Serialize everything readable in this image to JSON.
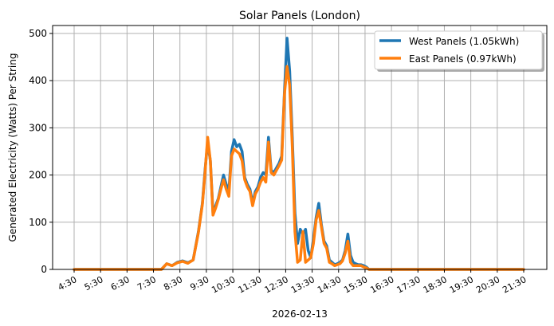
{
  "chart_data": {
    "type": "line",
    "title": "Solar Panels (London)",
    "xlabel": "2026-02-13",
    "ylabel": "Generated Electricity (Watts) Per String",
    "ylim": [
      0,
      515
    ],
    "yticks": [
      0,
      100,
      200,
      300,
      400,
      500
    ],
    "xticks": [
      "4:30",
      "5:30",
      "6:30",
      "7:30",
      "8:30",
      "9:30",
      "10:30",
      "11:30",
      "12:30",
      "13:30",
      "14:30",
      "15:30",
      "16:30",
      "17:30",
      "18:30",
      "19:30",
      "20:30",
      "21:30"
    ],
    "grid": true,
    "legend_position": "upper right",
    "x_hours": [
      4.5,
      5,
      6,
      7,
      7.8,
      8.0,
      8.2,
      8.4,
      8.6,
      8.8,
      9.0,
      9.2,
      9.35,
      9.45,
      9.55,
      9.65,
      9.75,
      9.85,
      9.95,
      10.05,
      10.15,
      10.25,
      10.35,
      10.45,
      10.55,
      10.65,
      10.75,
      10.85,
      10.95,
      11.05,
      11.15,
      11.25,
      11.35,
      11.45,
      11.55,
      11.65,
      11.75,
      11.85,
      11.95,
      12.05,
      12.15,
      12.25,
      12.35,
      12.45,
      12.55,
      12.65,
      12.75,
      12.85,
      12.95,
      13.05,
      13.15,
      13.25,
      13.35,
      13.45,
      13.55,
      13.65,
      13.75,
      13.85,
      13.95,
      14.05,
      14.15,
      14.25,
      14.35,
      14.45,
      14.55,
      14.65,
      14.75,
      14.85,
      14.95,
      15.05,
      15.15,
      15.25,
      15.35,
      15.45,
      15.55,
      15.65,
      15.75,
      15.85,
      15.95,
      16.05,
      16.15,
      16.25,
      16.35,
      16.45,
      16.55,
      16.65,
      16.75,
      16.85,
      17.0,
      18,
      19,
      20,
      21,
      21.5
    ],
    "series": [
      {
        "name": "West Panels (1.05kWh)",
        "color": "#1f77b4",
        "values": [
          0,
          0,
          0,
          0,
          0,
          12,
          8,
          15,
          18,
          14,
          20,
          80,
          140,
          210,
          270,
          230,
          120,
          135,
          150,
          175,
          200,
          180,
          165,
          250,
          275,
          260,
          265,
          250,
          195,
          180,
          170,
          140,
          165,
          175,
          195,
          205,
          200,
          280,
          210,
          205,
          215,
          225,
          240,
          375,
          490,
          420,
          280,
          120,
          55,
          85,
          75,
          85,
          40,
          25,
          65,
          110,
          140,
          95,
          60,
          50,
          20,
          15,
          10,
          12,
          15,
          20,
          40,
          75,
          30,
          15,
          12,
          10,
          10,
          8,
          5,
          0,
          0,
          0,
          0,
          0,
          0,
          0,
          0,
          0,
          0,
          0,
          0,
          0,
          0,
          0,
          0,
          0,
          0,
          0
        ]
      },
      {
        "name": "East Panels (0.97kWh)",
        "color": "#ff7f0e",
        "values": [
          0,
          0,
          0,
          0,
          0,
          12,
          8,
          14,
          17,
          13,
          20,
          78,
          138,
          205,
          280,
          230,
          115,
          130,
          148,
          170,
          190,
          170,
          155,
          240,
          255,
          250,
          245,
          230,
          190,
          175,
          165,
          135,
          160,
          170,
          185,
          195,
          185,
          270,
          205,
          200,
          210,
          220,
          232,
          370,
          430,
          390,
          260,
          80,
          15,
          20,
          80,
          15,
          20,
          25,
          55,
          105,
          125,
          90,
          55,
          45,
          15,
          12,
          8,
          10,
          12,
          18,
          35,
          60,
          15,
          8,
          8,
          8,
          8,
          5,
          3,
          0,
          0,
          0,
          0,
          0,
          0,
          0,
          0,
          0,
          0,
          0,
          0,
          0,
          0,
          0,
          0,
          0,
          0,
          0
        ]
      }
    ]
  },
  "legend": {
    "west_label": "West Panels (1.05kWh)",
    "east_label": "East Panels (0.97kWh)"
  },
  "colors": {
    "west": "#1f77b4",
    "east": "#ff7f0e",
    "grid": "#b0b0b0"
  }
}
